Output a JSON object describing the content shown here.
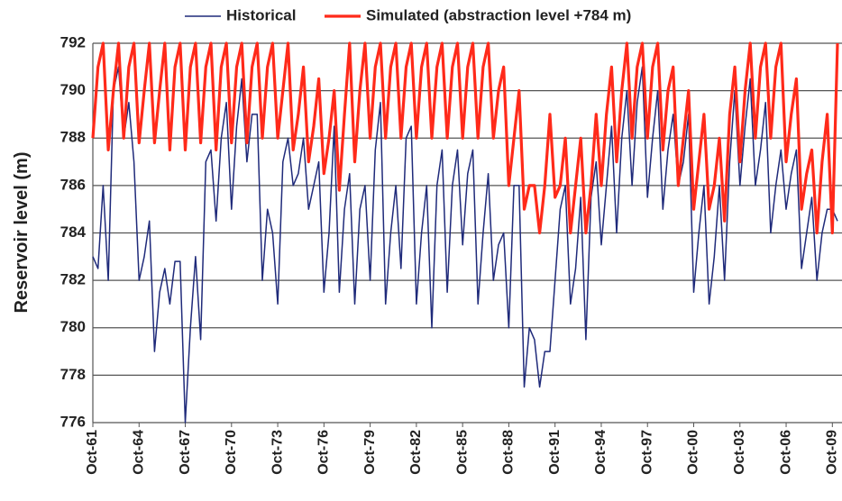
{
  "chart_data": {
    "type": "line",
    "y_label": "Reservoir level (m)",
    "categories": [
      "Oct-61",
      null,
      null,
      null,
      null,
      null,
      null,
      null,
      null,
      "Oct-64",
      null,
      null,
      null,
      null,
      null,
      null,
      null,
      null,
      "Oct-67",
      null,
      null,
      null,
      null,
      null,
      null,
      null,
      null,
      "Oct-70",
      null,
      null,
      null,
      null,
      null,
      null,
      null,
      null,
      "Oct-73",
      null,
      null,
      null,
      null,
      null,
      null,
      null,
      null,
      "Oct-76",
      null,
      null,
      null,
      null,
      null,
      null,
      null,
      null,
      "Oct-79",
      null,
      null,
      null,
      null,
      null,
      null,
      null,
      null,
      "Oct-82",
      null,
      null,
      null,
      null,
      null,
      null,
      null,
      null,
      "Oct-85",
      null,
      null,
      null,
      null,
      null,
      null,
      null,
      null,
      "Oct-88",
      null,
      null,
      null,
      null,
      null,
      null,
      null,
      null,
      "Oct-91",
      null,
      null,
      null,
      null,
      null,
      null,
      null,
      null,
      "Oct-94",
      null,
      null,
      null,
      null,
      null,
      null,
      null,
      null,
      "Oct-97",
      null,
      null,
      null,
      null,
      null,
      null,
      null,
      null,
      "Oct-00",
      null,
      null,
      null,
      null,
      null,
      null,
      null,
      null,
      "Oct-03",
      null,
      null,
      null,
      null,
      null,
      null,
      null,
      null,
      "Oct-06",
      null,
      null,
      null,
      null,
      null,
      null,
      null,
      null,
      "Oct-09",
      null
    ],
    "series": [
      {
        "name": "Historical",
        "color": "#1f2a7a",
        "width": 1.5,
        "values": [
          783,
          782.5,
          786,
          782,
          790,
          791,
          788,
          789.5,
          787,
          782,
          783,
          784.5,
          779,
          781.5,
          782.5,
          781,
          782.8,
          782.8,
          776,
          780,
          783,
          779.5,
          787,
          787.5,
          784.5,
          788,
          789.5,
          785,
          788.5,
          790.5,
          787,
          789,
          789,
          782,
          785,
          784,
          781,
          787,
          788,
          786,
          786.5,
          788,
          785,
          786,
          787,
          781.5,
          784,
          788.5,
          781.5,
          785,
          786.5,
          781,
          785,
          786,
          782,
          787.5,
          789.5,
          781,
          784,
          786,
          782.5,
          788,
          788.5,
          781,
          784,
          786,
          780,
          786,
          787.5,
          781.5,
          786,
          787.5,
          783.5,
          786.5,
          787.5,
          781,
          784,
          786.5,
          782,
          783.5,
          784,
          780,
          786,
          786,
          777.5,
          780,
          779.5,
          777.5,
          779,
          779,
          782,
          785,
          786,
          781,
          782.5,
          785.5,
          779.5,
          785.5,
          787,
          783.5,
          786,
          788.5,
          784,
          788,
          790,
          786,
          789.5,
          791,
          785.5,
          788,
          790,
          785,
          787.5,
          789,
          786,
          787,
          789,
          781.5,
          784,
          786,
          781,
          783,
          786,
          782,
          787,
          790,
          786,
          788.5,
          790.5,
          786,
          787.5,
          789.5,
          784,
          786,
          787.5,
          785,
          786.5,
          787.5,
          782.5,
          784,
          785.5,
          782,
          784,
          785,
          785,
          784.5
        ]
      },
      {
        "name": "Simulated (abstraction level +784 m)",
        "color": "#ff2a1a",
        "width": 3.2,
        "values": [
          788,
          791,
          792,
          787.5,
          790,
          792,
          788,
          791,
          792,
          787.8,
          790,
          792,
          787.8,
          790,
          792,
          787.5,
          791,
          792,
          787.5,
          791,
          792,
          787.8,
          791,
          792,
          787.5,
          791,
          792,
          787.8,
          791,
          792,
          787.8,
          791,
          792,
          788,
          791,
          792,
          788,
          790,
          792,
          787.5,
          789,
          791,
          787,
          788.5,
          790.5,
          786.5,
          788,
          790,
          785.8,
          789,
          792,
          787,
          790,
          792,
          788,
          791,
          792,
          788,
          791,
          792,
          788,
          791,
          792,
          788,
          791,
          792,
          788,
          791,
          792,
          788,
          791,
          792,
          788,
          791,
          792,
          788,
          791,
          792,
          788,
          790,
          791,
          786,
          788,
          790,
          785,
          786,
          786,
          784,
          786,
          789,
          785.5,
          786,
          788,
          784,
          786,
          788,
          784,
          786,
          789,
          786,
          789,
          791,
          787,
          790,
          792,
          788,
          791,
          792,
          788,
          791,
          792,
          787.5,
          790,
          791,
          786,
          788,
          790,
          785,
          787,
          789,
          785,
          786,
          788,
          784.5,
          789,
          791,
          787,
          790,
          792,
          788,
          791,
          792,
          788,
          791,
          792,
          787,
          789,
          790.5,
          785,
          786.5,
          787.5,
          784,
          787,
          789,
          784,
          792
        ]
      }
    ],
    "ylim": [
      776,
      792
    ],
    "yticks": [
      776,
      778,
      780,
      782,
      784,
      786,
      788,
      790,
      792
    ],
    "grid": true
  }
}
